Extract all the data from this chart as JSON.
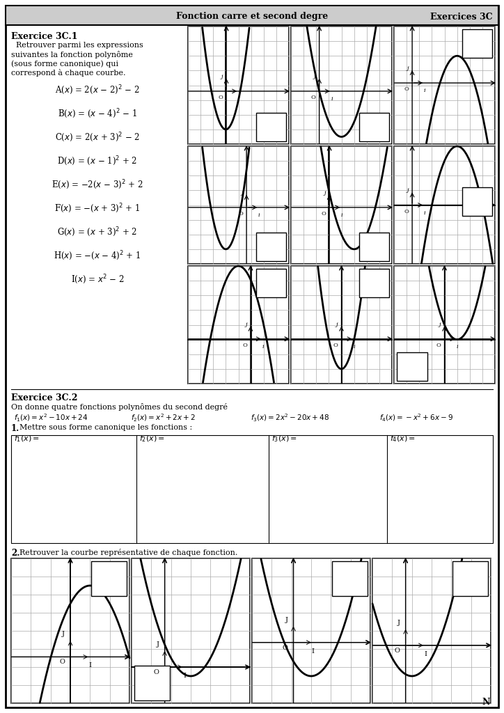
{
  "header_bg": "#cccccc",
  "page_bg": "#ffffff",
  "title_center": "Fonction carre et second degre",
  "title_right": "Exercices 3C",
  "ex1_title": "Exercice 3C.1",
  "ex1_desc": [
    "  Retrouver parmi les expressions",
    "suivantes la fonction polynome",
    "(sous forme canonique) qui",
    "correspond a chaque courbe."
  ],
  "funcs": [
    "A(x) = 2(x – 2)² – 2",
    "B(x) = (x – 4)² – 1",
    "C(x) = 2(x + 3)² – 2",
    "D(x) = (x – 1)² + 2",
    "E(x) = −2(x – 3)² + 2",
    "F(x) = −(x + 3)² + 1",
    "G(x) = (x + 3)² + 2",
    "H(x) = −(x – 4)² + 1",
    "I(x) = x² – 2"
  ],
  "ex2_title": "Exercice 3C.2",
  "ex2_desc": "On donne quatre fonctions polynomes du second degre",
  "ex2_q1": "1. Mettre sous forme canonique les fonctions :",
  "ex2_q2": "2. Retrouver la courbe representative de chaque fonction."
}
